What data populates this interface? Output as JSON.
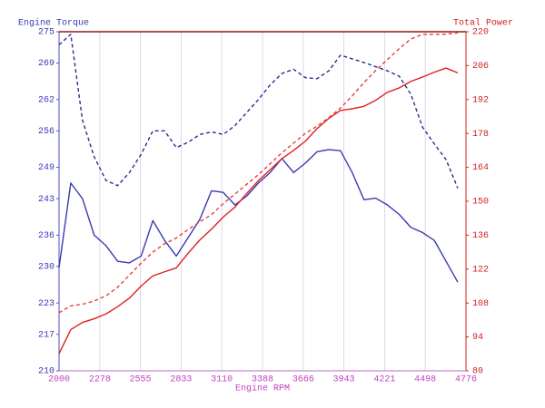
{
  "chart_data": {
    "type": "line",
    "xlabel": "Engine RPM",
    "ylabel": "Engine Torque",
    "y2label": "Total Power",
    "x": [
      2000,
      2080,
      2160,
      2240,
      2320,
      2400,
      2480,
      2560,
      2640,
      2720,
      2800,
      2880,
      2960,
      3040,
      3120,
      3200,
      3280,
      3360,
      3440,
      3520,
      3600,
      3680,
      3760,
      3840,
      3920,
      4000,
      4080,
      4160,
      4240,
      4320,
      4400,
      4480,
      4560,
      4640,
      4720
    ],
    "xlim": [
      2000,
      4776
    ],
    "xticks": [
      2000,
      2278,
      2555,
      2833,
      3110,
      3388,
      3666,
      3943,
      4221,
      4498,
      4776
    ],
    "ylim": [
      210,
      275
    ],
    "yticks": [
      210,
      217,
      223,
      230,
      236,
      243,
      249,
      256,
      262,
      269,
      275
    ],
    "y2lim": [
      80,
      220
    ],
    "y2ticks": [
      80,
      94,
      108,
      122,
      136,
      150,
      164,
      178,
      192,
      206,
      220
    ],
    "xgrid": true,
    "series": [
      {
        "color": "#3a3ab0",
        "dashed": false,
        "axis": "y",
        "values": [
          229.8,
          246,
          243,
          236,
          234,
          231,
          230.7,
          232,
          238.8,
          235,
          232,
          235.5,
          239,
          244.5,
          244.2,
          241.8,
          243.5,
          246,
          248,
          250.7,
          248,
          249.8,
          252,
          252.4,
          252.2,
          248,
          242.8,
          243.1,
          241.8,
          240,
          237.5,
          236.5,
          235,
          231,
          227
        ]
      },
      {
        "color": "#2c2c90",
        "dashed": true,
        "axis": "y",
        "values": [
          272.5,
          274.5,
          258,
          251,
          246.5,
          245.5,
          248,
          251.5,
          256,
          256,
          252.8,
          253.8,
          255.3,
          255.8,
          255.3,
          257,
          259.5,
          262,
          264.8,
          267,
          267.8,
          266.2,
          266,
          267.5,
          270.5,
          269.8,
          269.1,
          268.3,
          267.5,
          266.5,
          263,
          256.7,
          253.5,
          250.5,
          245
        ]
      },
      {
        "color": "#e02020",
        "dashed": false,
        "axis": "y2",
        "values": [
          87.1,
          97,
          100,
          101.5,
          103.5,
          106.5,
          110,
          115,
          119.2,
          120.9,
          122.5,
          128.5,
          134,
          138.5,
          143.5,
          147.6,
          153.2,
          158.5,
          163,
          167.6,
          171,
          174.8,
          180,
          184.2,
          187.5,
          188.2,
          189.2,
          191.7,
          195,
          196.8,
          199.5,
          201.3,
          203.3,
          205,
          203
        ]
      },
      {
        "color": "#e84040",
        "dashed": true,
        "axis": "y2",
        "values": [
          104,
          106.8,
          107.5,
          108.8,
          111,
          114.5,
          119.5,
          124.5,
          129,
          132.5,
          134.8,
          138.3,
          141.5,
          144.5,
          149,
          153,
          157,
          161,
          165.5,
          170,
          174,
          178,
          181,
          184.5,
          188.5,
          193.5,
          199,
          204,
          208.5,
          213,
          217,
          218.9,
          218.9,
          219,
          219.5
        ]
      }
    ]
  }
}
